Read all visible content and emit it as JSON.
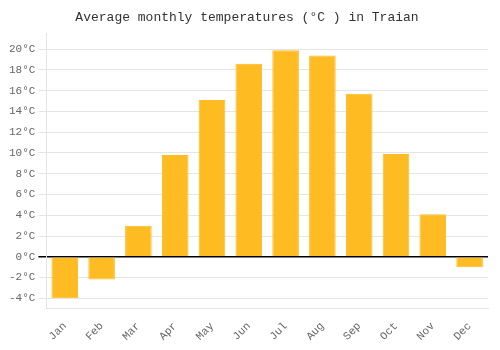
{
  "chart_data": {
    "type": "bar",
    "title": "Average monthly temperatures (°C ) in Traian",
    "categories": [
      "Jan",
      "Feb",
      "Mar",
      "Apr",
      "May",
      "Jun",
      "Jul",
      "Aug",
      "Sep",
      "Oct",
      "Nov",
      "Dec"
    ],
    "values": [
      -4.0,
      -2.2,
      3.0,
      9.8,
      15.1,
      18.6,
      19.9,
      19.4,
      15.7,
      9.9,
      4.1,
      -1.0
    ],
    "color": "#FFBB22",
    "ylim": [
      -5.0,
      21.5
    ],
    "yticks": [
      {
        "value": -4,
        "label": "-4°C"
      },
      {
        "value": -2,
        "label": "-2°C"
      },
      {
        "value": 0,
        "label": "0°C"
      },
      {
        "value": 2,
        "label": "2°C"
      },
      {
        "value": 4,
        "label": "4°C"
      },
      {
        "value": 6,
        "label": "6°C"
      },
      {
        "value": 8,
        "label": "8°C"
      },
      {
        "value": 10,
        "label": "10°C"
      },
      {
        "value": 12,
        "label": "12°C"
      },
      {
        "value": 14,
        "label": "14°C"
      },
      {
        "value": 16,
        "label": "16°C"
      },
      {
        "value": 18,
        "label": "18°C"
      },
      {
        "value": 20,
        "label": "20°C"
      }
    ],
    "grid": true
  }
}
